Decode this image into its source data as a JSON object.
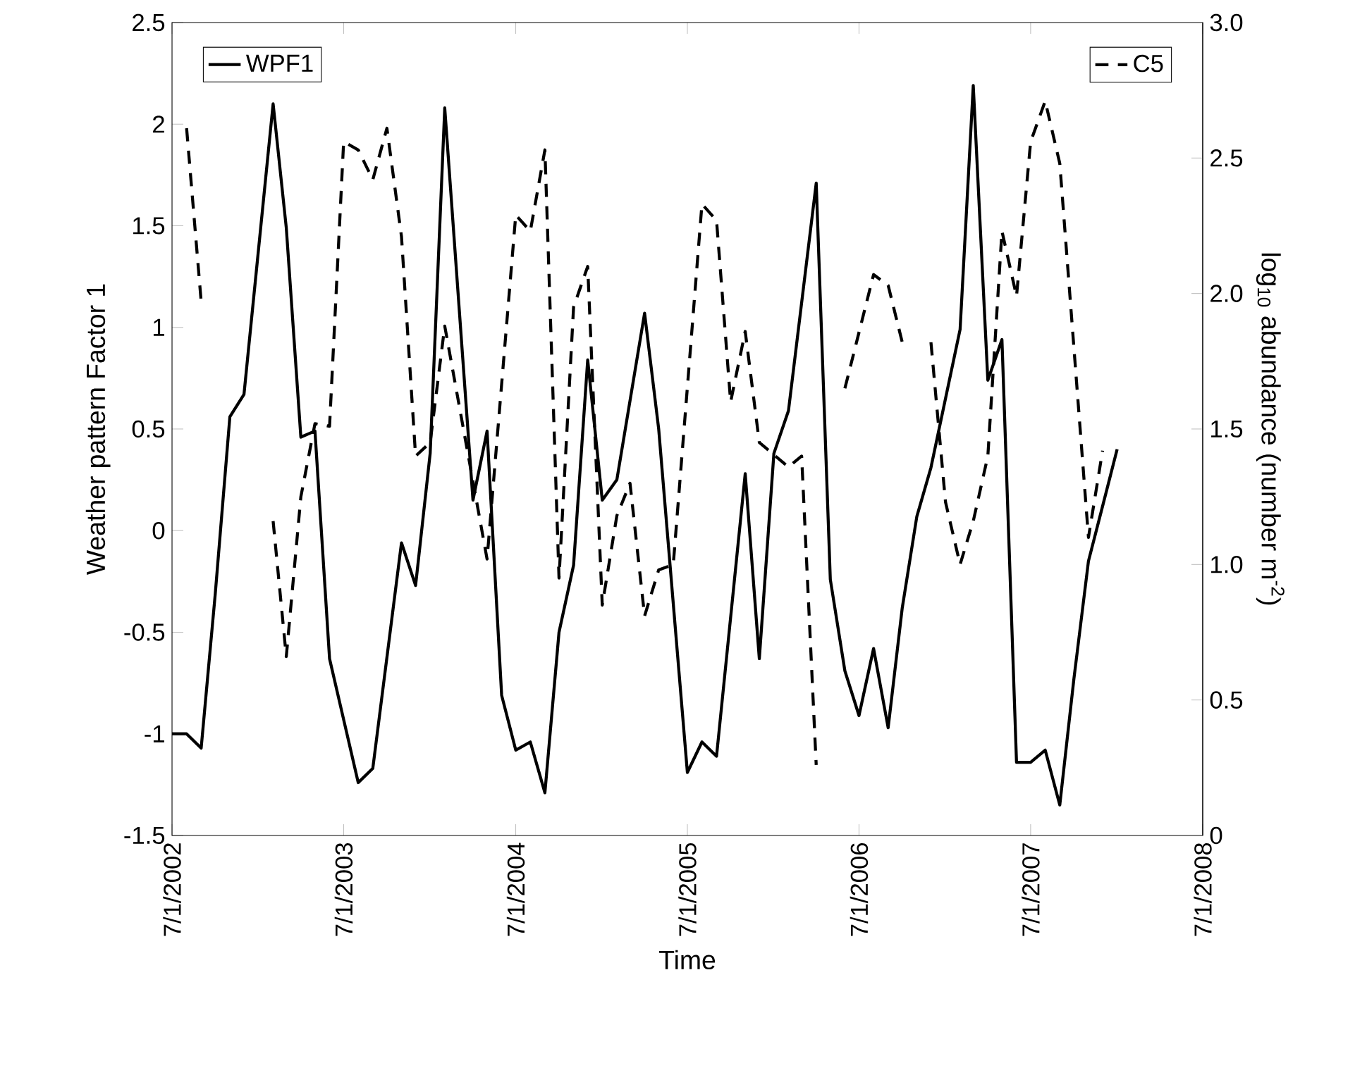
{
  "chart_data": {
    "type": "line",
    "xlabel": "Time",
    "ylabel": "Weather pattern Factor 1",
    "y2label": "log$_{10}$ abundance (number m$^{-2}$)",
    "xlim": [
      "2002-07-01",
      "2008-07-01"
    ],
    "xticks": [
      {
        "value": "2002-07-01",
        "label": "7/1/2002"
      },
      {
        "value": "2003-07-01",
        "label": "7/1/2003"
      },
      {
        "value": "2004-07-01",
        "label": "7/1/2004"
      },
      {
        "value": "2005-07-01",
        "label": "7/1/2005"
      },
      {
        "value": "2006-07-01",
        "label": "7/1/2006"
      },
      {
        "value": "2007-07-01",
        "label": "7/1/2007"
      },
      {
        "value": "2008-07-01",
        "label": "7/1/2008"
      }
    ],
    "ylim": [
      -1.5,
      2.5
    ],
    "yticks": [
      -1.5,
      -1,
      -0.5,
      0,
      0.5,
      1,
      1.5,
      2,
      2.5
    ],
    "y2lim": [
      0,
      3
    ],
    "y2ticks": [
      0,
      {
        "value": 0.5,
        "label": "0.5"
      },
      {
        "value": 1,
        "label": "1.0"
      },
      {
        "value": 1.5,
        "label": "1.5"
      },
      {
        "value": 2,
        "label": "2.0"
      },
      {
        "value": 2.5,
        "label": "2.5"
      },
      {
        "value": 3,
        "label": "3.0"
      }
    ],
    "marker": "none",
    "legend": "top",
    "series": [
      {
        "name": "WPF1",
        "color": "#000000",
        "line_style": "solid",
        "x": [
          "2002-07",
          "2002-08",
          "2002-09",
          "2002-10",
          "2002-11",
          "2002-12",
          "2003-02",
          "2003-03",
          "2003-04",
          "2003-05",
          "2003-06",
          "2003-08",
          "2003-09",
          "2003-11",
          "2003-12",
          "2004-01",
          "2004-02",
          "2004-04",
          "2004-05",
          "2004-06",
          "2004-07",
          "2004-08",
          "2004-09",
          "2004-10",
          "2004-11",
          "2004-12",
          "2005-01",
          "2005-02",
          "2005-04",
          "2005-05",
          "2005-07",
          "2005-08",
          "2005-09",
          "2005-11",
          "2005-12",
          "2006-01",
          "2006-02",
          "2006-04",
          "2006-05",
          "2006-06",
          "2006-07",
          "2006-08",
          "2006-09",
          "2006-10",
          "2006-11",
          "2006-12",
          "2007-02",
          "2007-03",
          "2007-04",
          "2007-05",
          "2007-06",
          "2007-07",
          "2007-08",
          "2007-09",
          "2007-10",
          "2007-11",
          "2007-12",
          "2008-01"
        ],
        "values": [
          -1.0,
          -1.0,
          -1.07,
          -0.31,
          0.56,
          0.67,
          2.1,
          1.49,
          0.46,
          0.49,
          -0.63,
          -1.24,
          -1.17,
          -0.06,
          -0.27,
          0.38,
          2.08,
          0.15,
          0.49,
          -0.81,
          -1.08,
          -1.04,
          -1.29,
          -0.5,
          -0.17,
          0.84,
          0.15,
          0.25,
          1.07,
          0.5,
          -1.19,
          -1.04,
          -1.11,
          0.28,
          -0.63,
          0.38,
          0.59,
          1.71,
          -0.24,
          -0.69,
          -0.91,
          -0.58,
          -0.97,
          -0.38,
          0.07,
          0.31,
          0.99,
          2.19,
          0.74,
          0.94,
          -1.14,
          -1.14,
          -1.08,
          -1.35,
          -0.73,
          -0.15,
          0.12,
          0.4
        ]
      },
      {
        "name": "C5",
        "color": "#000000",
        "line_style": "dashed",
        "axis": "y2",
        "x": [
          "2002-08",
          "2002-09",
          "2002-10",
          "2003-02",
          "2003-03",
          "2003-04",
          "2003-05",
          "2003-06",
          "2003-07",
          "2003-08",
          "2003-09",
          "2003-10",
          "2003-11",
          "2003-12",
          "2004-01",
          "2004-02",
          "2004-05",
          "2004-07",
          "2004-08",
          "2004-09",
          "2004-10",
          "2004-11",
          "2004-12",
          "2005-01",
          "2005-02",
          "2005-03",
          "2005-04",
          "2005-05",
          "2005-06",
          "2005-08",
          "2005-09",
          "2005-10",
          "2005-11",
          "2005-12",
          "2006-02",
          "2006-03",
          "2006-04",
          "2006-05",
          "2006-06",
          "2006-08",
          "2006-09",
          "2006-10",
          "2006-11",
          "2006-12",
          "2007-01",
          "2007-02",
          "2007-03",
          "2007-04",
          "2007-05",
          "2007-06",
          "2007-07",
          "2007-08",
          "2007-09",
          "2007-11",
          "2007-12"
        ],
        "values": [
          2.61,
          1.97,
          null,
          1.16,
          0.66,
          1.25,
          1.52,
          1.51,
          2.56,
          2.53,
          2.42,
          2.61,
          2.21,
          1.4,
          1.45,
          1.88,
          1.02,
          2.29,
          2.23,
          2.53,
          0.95,
          1.95,
          2.1,
          0.85,
          1.18,
          1.3,
          0.81,
          0.98,
          1.0,
          2.33,
          2.27,
          1.6,
          1.86,
          1.45,
          1.36,
          1.4,
          0.26,
          null,
          1.65,
          2.07,
          2.03,
          1.82,
          null,
          1.82,
          1.23,
          1.0,
          1.16,
          1.4,
          2.23,
          1.99,
          2.56,
          2.71,
          2.48,
          1.1,
          1.42
        ]
      }
    ]
  }
}
